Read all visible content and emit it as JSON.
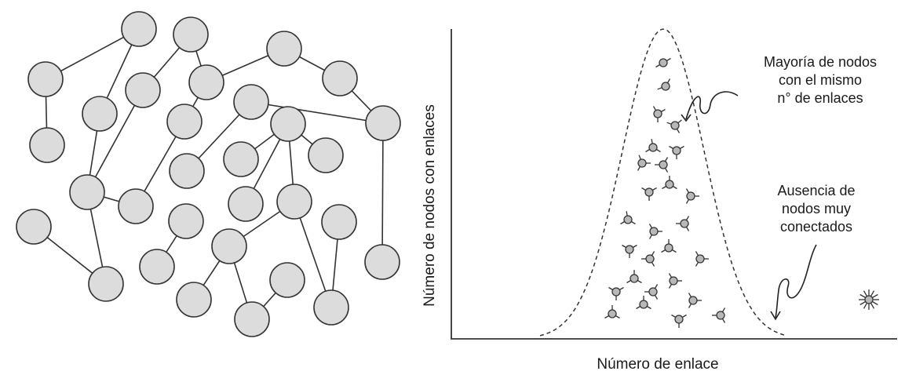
{
  "figure": {
    "y_axis_label": "Número de nodos con enlaces",
    "x_axis_label": "Número de enlace",
    "annotation_top": [
      "Mayoría de nodos",
      "con el mismo",
      "n° de enlaces"
    ],
    "annotation_bottom": [
      "Ausencia de",
      "nodos muy",
      "conectados"
    ],
    "colors": {
      "node_fill": "#dcdcdc",
      "stroke": "#333333",
      "small_node_fill": "#b8b8b8"
    },
    "network_node_count": 33,
    "distribution_type": "bell-shaped (normal)"
  }
}
